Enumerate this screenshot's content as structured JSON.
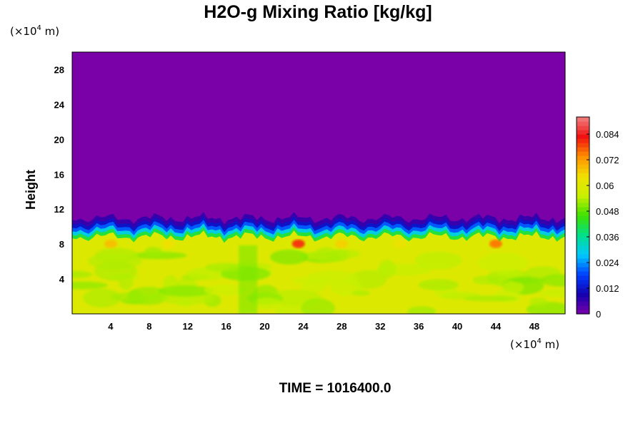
{
  "chart_data": {
    "type": "heatmap",
    "title": "H2O-g Mixing Ratio [kg/kg]",
    "ylabel": "Height",
    "xlabel": "",
    "x_unit": {
      "pre": "(×10",
      "exp": "4",
      "post": " m)"
    },
    "y_unit": {
      "pre": "(×10",
      "exp": "4",
      "post": " m)"
    },
    "xlim": [
      0,
      51.2
    ],
    "ylim": [
      0,
      30
    ],
    "x_ticks": [
      4,
      8,
      12,
      16,
      20,
      24,
      28,
      32,
      36,
      40,
      44,
      48
    ],
    "y_ticks": [
      4,
      8,
      12,
      16,
      20,
      24,
      28
    ],
    "colorbar": {
      "range": [
        0,
        0.092
      ],
      "ticks": [
        0,
        0.012,
        0.024,
        0.036,
        0.048,
        0.06,
        0.072,
        0.084
      ],
      "tick_labels": [
        "0",
        "0.012",
        "0.024",
        "0.036",
        "0.048",
        "0.06",
        "0.072",
        "0.084"
      ],
      "colors": [
        "#7a00a8",
        "#1400b0",
        "#0040ff",
        "#00c8ff",
        "#00e08a",
        "#3ee000",
        "#c8f000",
        "#f0e000",
        "#ff9000",
        "#f01010",
        "#f08080"
      ]
    },
    "field_summary": {
      "lower_layer_value": 0.06,
      "top_of_moist_layer_height": 9.5,
      "dry_region_value": 0,
      "peak_value": 0.08
    },
    "grid": false,
    "legend": "colorbar-right"
  },
  "footer": {
    "time_label": "TIME = 1016400.0"
  }
}
